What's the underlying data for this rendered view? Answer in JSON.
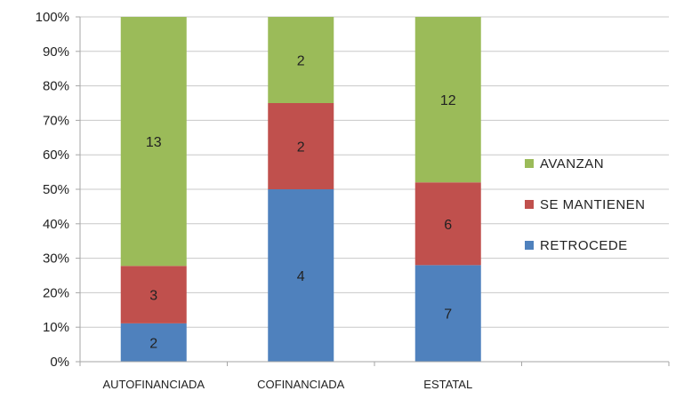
{
  "chart_data": {
    "type": "bar",
    "stacked": "percent",
    "categories": [
      "AUTOFINANCIADA",
      "COFINANCIADA",
      "ESTATAL"
    ],
    "series": [
      {
        "name": "RETROCEDE",
        "color": "#4f81bd",
        "values": [
          2,
          4,
          7
        ]
      },
      {
        "name": "SE MANTIENEN",
        "color": "#c0504d",
        "values": [
          3,
          2,
          6
        ]
      },
      {
        "name": "AVANZAN",
        "color": "#9bbb59",
        "values": [
          13,
          2,
          12
        ]
      }
    ],
    "ylim": [
      0,
      100
    ],
    "yticks": [
      "0%",
      "10%",
      "20%",
      "30%",
      "40%",
      "50%",
      "60%",
      "70%",
      "80%",
      "90%",
      "100%"
    ],
    "grid": true,
    "legend_placement": "right",
    "legend_order": [
      "AVANZAN",
      "SE MANTIENEN",
      "RETROCEDE"
    ],
    "gridline_color": "#c8c8c8",
    "axis_color": "#a6a6a6"
  }
}
